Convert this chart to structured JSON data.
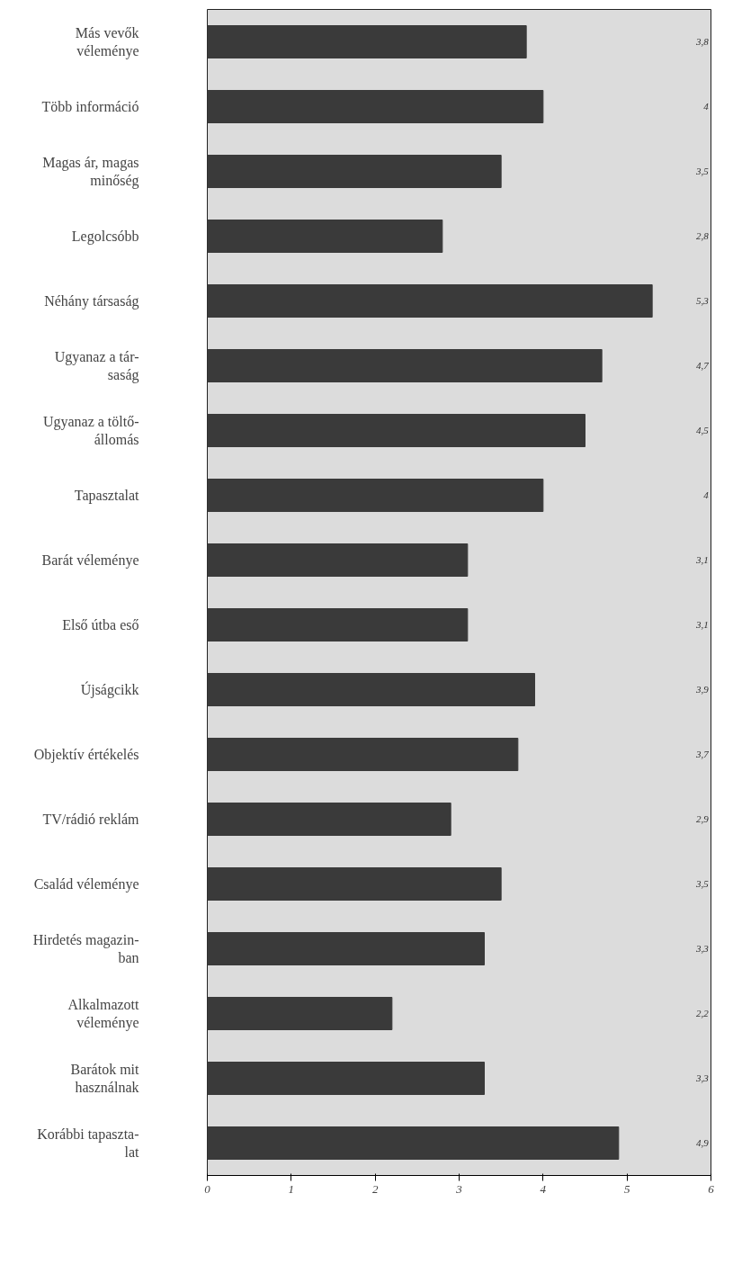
{
  "chart_data": {
    "type": "bar",
    "orientation": "horizontal",
    "categories": [
      "Más vevők\nvéleménye",
      "Több információ",
      "Magas ár, magas\nminőség",
      "Legolcsóbb",
      "Néhány társaság",
      "Ugyanaz a tár-\nsaság",
      "Ugyanaz a töltő-\nállomás",
      "Tapasztalat",
      "Barát véleménye",
      "Első útba eső",
      "Újságcikk",
      "Objektív értékelés",
      "TV/rádió reklám",
      "Család véleménye",
      "Hirdetés magazin-\nban",
      "Alkalmazott\nvéleménye",
      "Barátok mit\nhasználnak",
      "Korábbi tapaszta-\nlat"
    ],
    "values": [
      3.8,
      4,
      3.5,
      2.8,
      5.3,
      4.7,
      4.5,
      4,
      3.1,
      3.1,
      3.9,
      3.7,
      2.9,
      3.5,
      3.3,
      2.2,
      3.3,
      4.9
    ],
    "value_labels": [
      "3,8",
      "4",
      "3,5",
      "2,8",
      "5,3",
      "4,7",
      "4,5",
      "4",
      "3,1",
      "3,1",
      "3,9",
      "3,7",
      "2,9",
      "3,5",
      "3,3",
      "2,2",
      "3,3",
      "4,9"
    ],
    "color": "#3a3a3a",
    "xlim": [
      0,
      6
    ],
    "xticks": [
      0,
      1,
      2,
      3,
      4,
      5,
      6
    ],
    "grid": false
  }
}
